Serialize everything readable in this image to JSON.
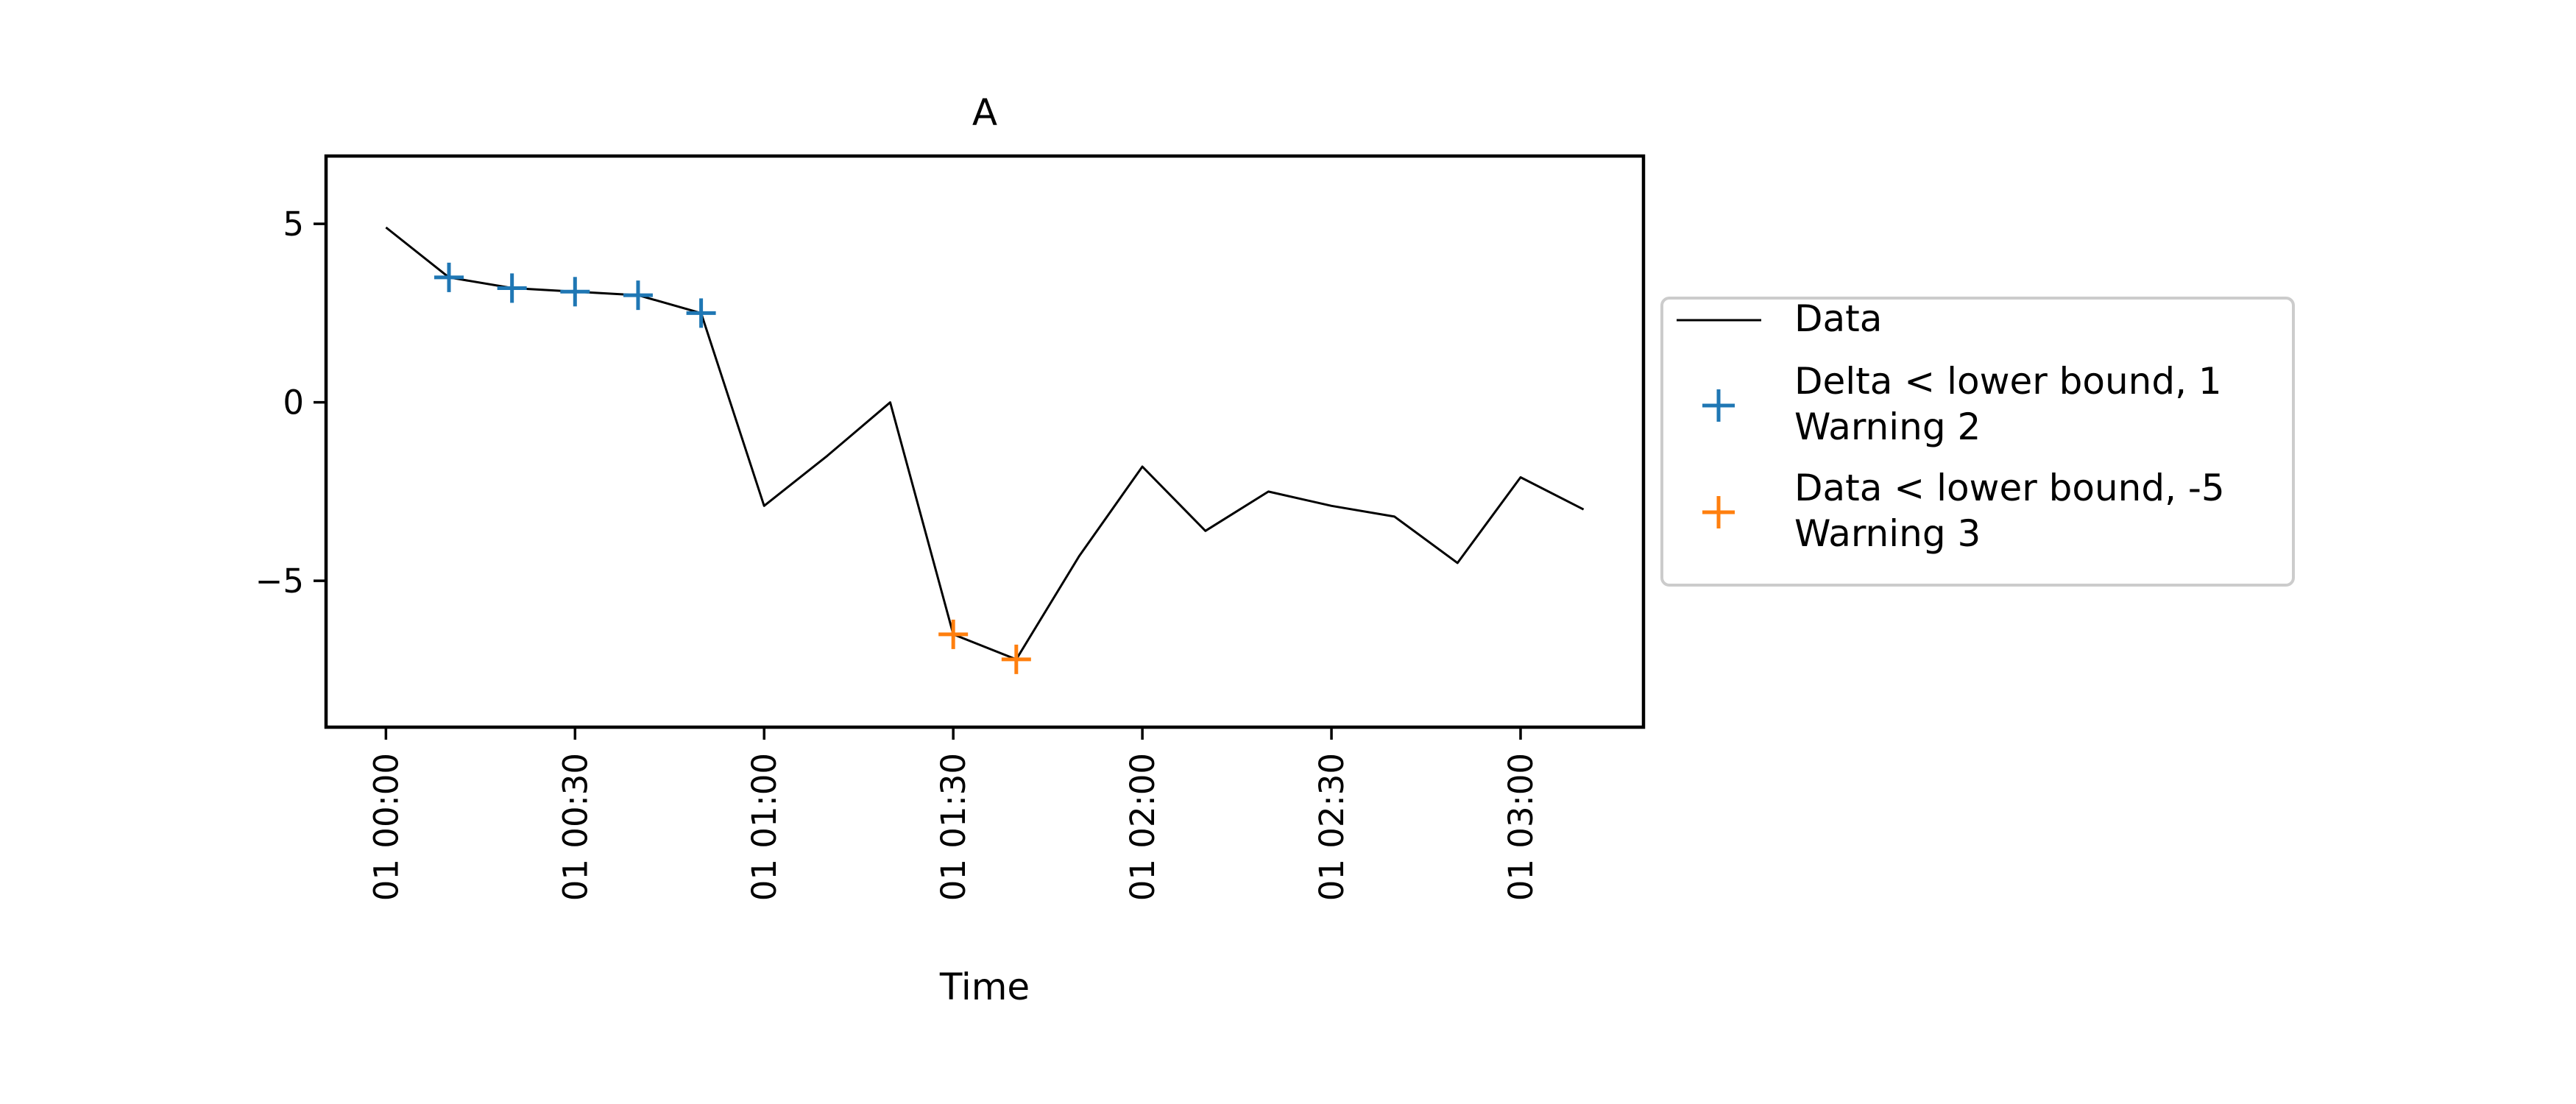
{
  "chart_data": {
    "type": "line",
    "title": "A",
    "xlabel": "Time",
    "ylabel": "",
    "x_tick_labels": [
      "01 00:00",
      "01 00:30",
      "01 01:00",
      "01 01:30",
      "01 02:00",
      "01 02:30",
      "01 03:00"
    ],
    "y_tick_labels": [
      "5",
      "0",
      "−5"
    ],
    "y_ticks": [
      5,
      0,
      -5
    ],
    "xlim": [
      "01 00:00",
      "01 03:10"
    ],
    "ylim": [
      -9.1,
      6.9
    ],
    "grid": false,
    "legend_position": "right, outside the plot",
    "series": [
      {
        "name": "Data",
        "kind": "line",
        "color": "#000000",
        "x": [
          "01 00:00",
          "01 00:10",
          "01 00:20",
          "01 00:30",
          "01 00:40",
          "01 00:50",
          "01 01:00",
          "01 01:10",
          "01 01:20",
          "01 01:30",
          "01 01:40",
          "01 01:50",
          "01 02:00",
          "01 02:10",
          "01 02:20",
          "01 02:30",
          "01 02:40",
          "01 02:50",
          "01 03:00",
          "01 03:10"
        ],
        "values": [
          4.9,
          3.5,
          3.2,
          3.1,
          3.0,
          2.5,
          -2.9,
          -1.5,
          0.0,
          -6.5,
          -7.2,
          -4.3,
          -1.8,
          -3.6,
          -2.5,
          -2.9,
          -3.2,
          -4.5,
          -2.1,
          -3.0
        ]
      },
      {
        "name": "Delta < lower bound, 1\nWarning 2",
        "kind": "marker",
        "marker": "+",
        "color": "#1f77b4",
        "x": [
          "01 00:10",
          "01 00:20",
          "01 00:30",
          "01 00:40",
          "01 00:50"
        ],
        "values": [
          3.5,
          3.2,
          3.1,
          3.0,
          2.5
        ]
      },
      {
        "name": "Data < lower bound, -5\nWarning 3",
        "kind": "marker",
        "marker": "+",
        "color": "#ff7f0e",
        "x": [
          "01 01:30",
          "01 01:40"
        ],
        "values": [
          -6.5,
          -7.2
        ]
      }
    ]
  }
}
